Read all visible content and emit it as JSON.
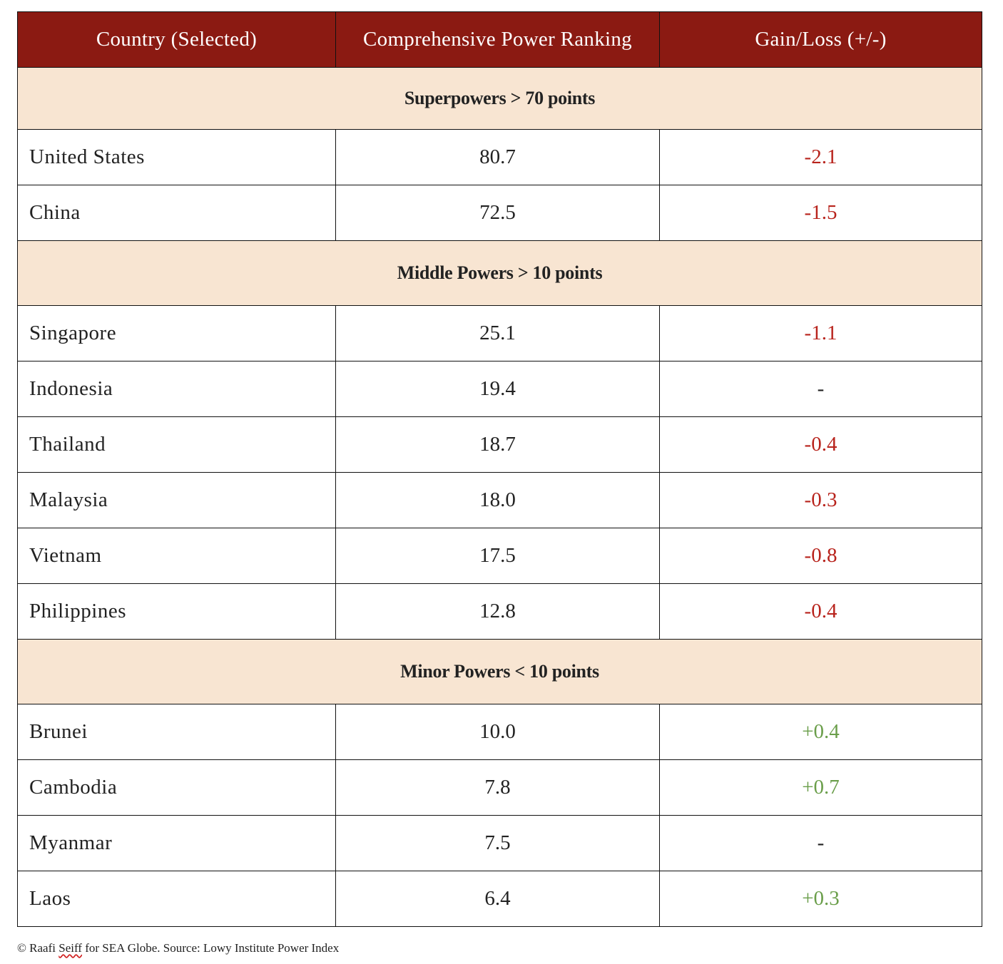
{
  "chart_data": {
    "type": "table",
    "columns": [
      "Country (Selected)",
      "Comprehensive Power Ranking",
      "Gain/Loss (+/-)"
    ],
    "groups": [
      {
        "label": "Superpowers > 70 points",
        "rows": [
          {
            "country": "United States",
            "score": "80.7",
            "change": "-2.1",
            "sign": "neg"
          },
          {
            "country": "China",
            "score": "72.5",
            "change": "-1.5",
            "sign": "neg"
          }
        ]
      },
      {
        "label": "Middle Powers > 10 points",
        "rows": [
          {
            "country": "Singapore",
            "score": "25.1",
            "change": "-1.1",
            "sign": "neg"
          },
          {
            "country": "Indonesia",
            "score": "19.4",
            "change": "-",
            "sign": "neutral"
          },
          {
            "country": "Thailand",
            "score": "18.7",
            "change": "-0.4",
            "sign": "neg"
          },
          {
            "country": "Malaysia",
            "score": "18.0",
            "change": "-0.3",
            "sign": "neg"
          },
          {
            "country": "Vietnam",
            "score": "17.5",
            "change": "-0.8",
            "sign": "neg"
          },
          {
            "country": "Philippines",
            "score": "12.8",
            "change": "-0.4",
            "sign": "neg"
          }
        ]
      },
      {
        "label": "Minor Powers < 10 points",
        "rows": [
          {
            "country": "Brunei",
            "score": "10.0",
            "change": "+0.4",
            "sign": "pos"
          },
          {
            "country": "Cambodia",
            "score": "7.8",
            "change": "+0.7",
            "sign": "pos"
          },
          {
            "country": "Myanmar",
            "score": "7.5",
            "change": "-",
            "sign": "neutral"
          },
          {
            "country": "Laos",
            "score": "6.4",
            "change": "+0.3",
            "sign": "pos"
          }
        ]
      }
    ]
  },
  "caption": {
    "prefix": "© Raafi ",
    "name_flagged": "Seiff",
    "suffix": " for SEA Globe. Source: Lowy Institute Power Index"
  },
  "colors": {
    "header_bg": "#8b1a12",
    "group_bg": "#f8e5d2",
    "negative": "#b8231c",
    "positive": "#6a9e4a"
  }
}
